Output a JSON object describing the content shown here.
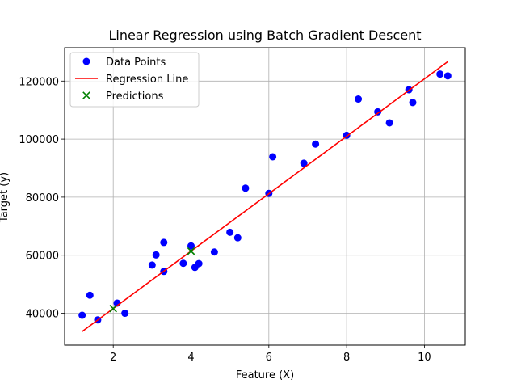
{
  "chart_data": {
    "type": "scatter",
    "title": "Linear Regression using Batch Gradient Descent",
    "xlabel": "Feature (X)",
    "ylabel": "Target (y)",
    "xlim": [
      0.75,
      11.05
    ],
    "ylim": [
      29000,
      131500
    ],
    "xticks": [
      2,
      4,
      6,
      8,
      10
    ],
    "yticks": [
      40000,
      60000,
      80000,
      100000,
      120000
    ],
    "grid": true,
    "legend_position": "top-left",
    "series": [
      {
        "name": "Data Points",
        "kind": "scatter",
        "marker": "circle",
        "color": "#0000ff",
        "x": [
          1.2,
          1.4,
          1.6,
          2.1,
          2.3,
          3.0,
          3.1,
          3.3,
          3.3,
          3.8,
          4.0,
          4.1,
          4.2,
          4.6,
          5.0,
          5.2,
          5.4,
          6.0,
          6.1,
          6.9,
          7.2,
          8.0,
          8.3,
          8.8,
          9.1,
          9.6,
          9.7,
          10.4,
          10.6
        ],
        "y": [
          39300,
          46200,
          37700,
          43500,
          40000,
          56600,
          60100,
          64400,
          54400,
          57200,
          63200,
          55800,
          57100,
          61100,
          67900,
          66000,
          83100,
          81300,
          93900,
          91700,
          98300,
          101300,
          113800,
          109400,
          105600,
          117000,
          112600,
          122400,
          121800
        ]
      },
      {
        "name": "Regression Line",
        "kind": "line",
        "color": "#ff0000",
        "x": [
          1.2,
          10.6
        ],
        "y": [
          33700,
          126700
        ]
      },
      {
        "name": "Predictions",
        "kind": "scatter",
        "marker": "x",
        "color": "#008000",
        "x": [
          2.0,
          4.0
        ],
        "y": [
          41600,
          61400
        ]
      }
    ]
  }
}
